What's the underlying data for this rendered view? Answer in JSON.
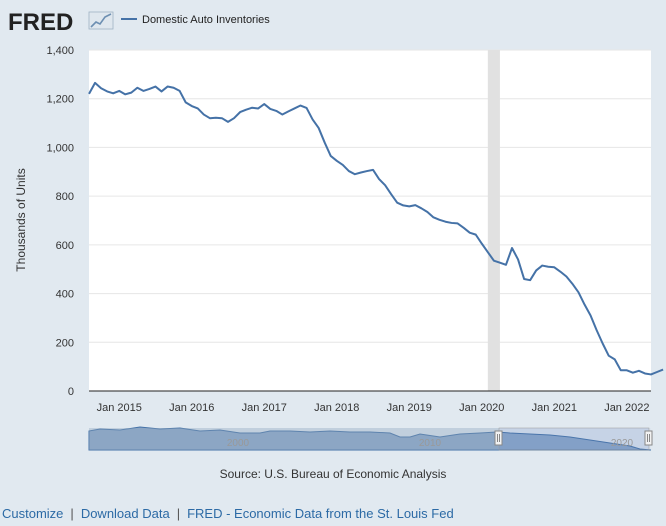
{
  "header": {
    "logo_text": "FRED",
    "legend_label": "Domestic Auto Inventories"
  },
  "source_text": "Source: U.S. Bureau of Economic Analysis",
  "footer": {
    "customize": "Customize",
    "download": "Download Data",
    "fred_link": "FRED - Economic Data from the St. Louis Fed",
    "separator": "|"
  },
  "navigator": {
    "year_labels": [
      "2000",
      "2010",
      "2020"
    ]
  },
  "colors": {
    "line": "#4572a7",
    "background": "#e1e9f0",
    "plot_bg": "#ffffff",
    "recession": "#e1e1e1",
    "link": "#2c6aa5"
  },
  "chart_data": {
    "type": "line",
    "title": "Domestic Auto Inventories",
    "xlabel": "",
    "ylabel": "Thousands of Units",
    "ylim": [
      0,
      1400
    ],
    "yticks": [
      0,
      200,
      400,
      600,
      800,
      1000,
      1200,
      1400
    ],
    "ytick_labels": [
      "0",
      "200",
      "400",
      "600",
      "800",
      "1,000",
      "1,200",
      "1,400"
    ],
    "xlim": [
      "2014-08",
      "2022-05"
    ],
    "xtick_labels": [
      "Jan 2015",
      "Jan 2016",
      "Jan 2017",
      "Jan 2018",
      "Jan 2019",
      "Jan 2020",
      "Jan 2021",
      "Jan 2022"
    ],
    "recession": {
      "start": "2020-02",
      "end": "2020-04"
    },
    "series": [
      {
        "name": "Domestic Auto Inventories",
        "start": "2014-08",
        "frequency": "monthly",
        "values": [
          1220,
          1265,
          1243,
          1230,
          1222,
          1232,
          1218,
          1225,
          1245,
          1232,
          1240,
          1250,
          1230,
          1250,
          1245,
          1232,
          1185,
          1170,
          1160,
          1135,
          1120,
          1122,
          1120,
          1105,
          1120,
          1145,
          1155,
          1163,
          1160,
          1178,
          1158,
          1150,
          1135,
          1148,
          1160,
          1172,
          1162,
          1115,
          1080,
          1020,
          965,
          945,
          928,
          903,
          890,
          897,
          903,
          908,
          870,
          845,
          808,
          773,
          762,
          758,
          763,
          750,
          735,
          713,
          703,
          695,
          690,
          688,
          670,
          650,
          642,
          605,
          570,
          535,
          527,
          518,
          587,
          540,
          460,
          455,
          495,
          515,
          510,
          508,
          490,
          470,
          440,
          405,
          355,
          310,
          250,
          195,
          145,
          130,
          85,
          85,
          75,
          83,
          72,
          68,
          78,
          88
        ]
      }
    ]
  }
}
